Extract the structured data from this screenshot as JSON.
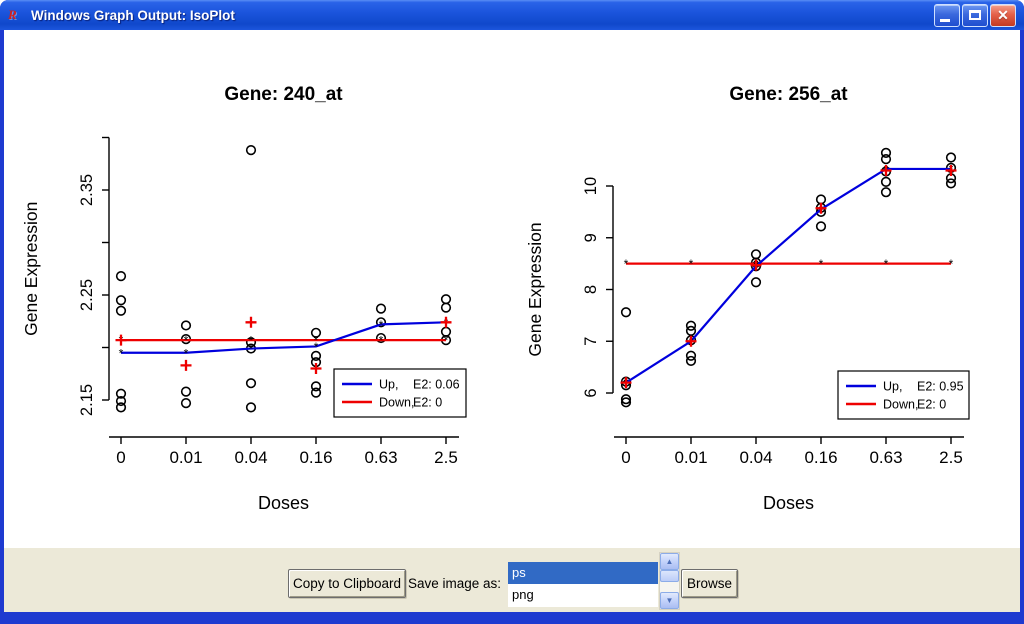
{
  "window": {
    "title": "Windows Graph Output: IsoPlot"
  },
  "icons": {
    "app": "R",
    "minimize": "minimize-bar",
    "maximize": "restore-square",
    "close": "✕",
    "scroll_up": "▲",
    "scroll_down": "▼"
  },
  "toolbar": {
    "copy_button": "Copy to Clipboard",
    "save_label": "Save image as:",
    "format_options": [
      "ps",
      "png"
    ],
    "selected_format": "ps",
    "browse_button": "Browse"
  },
  "colors": {
    "up_line": "#0000dd",
    "down_line": "#ee0000",
    "marker_asterisk": "#444444",
    "selection_blue": "#316ac5",
    "panel_beige": "#ece9d8"
  },
  "chart_data": [
    {
      "type": "scatter",
      "title": "Gene: 240_at",
      "xlabel": "Doses",
      "ylabel": "Gene Expression",
      "categories": [
        "0",
        "0.01",
        "0.04",
        "0.16",
        "0.63",
        "2.5"
      ],
      "ylim": [
        2.15,
        2.4
      ],
      "yticks": [
        2.15,
        2.2,
        2.25,
        2.3,
        2.35,
        2.4
      ],
      "ytick_labels": [
        "2.15",
        "",
        "2.25",
        "",
        "2.35",
        ""
      ],
      "points": [
        [
          2.268,
          2.245,
          2.235,
          2.156,
          2.149,
          2.143
        ],
        [
          2.221,
          2.208,
          2.158,
          2.147
        ],
        [
          2.388,
          2.205,
          2.199,
          2.166,
          2.143
        ],
        [
          2.214,
          2.192,
          2.186,
          2.163,
          2.157
        ],
        [
          2.237,
          2.224,
          2.209
        ],
        [
          2.246,
          2.238,
          2.215,
          2.207
        ]
      ],
      "series": [
        {
          "name": "Up",
          "color": "#0000dd",
          "values": [
            2.195,
            2.195,
            2.199,
            2.201,
            2.222,
            2.224
          ]
        },
        {
          "name": "Down",
          "color": "#ee0000",
          "values": [
            2.207,
            2.207,
            2.207,
            2.207,
            2.207,
            2.207
          ]
        }
      ],
      "down_plus_markers": [
        [
          0,
          2.207
        ],
        [
          1,
          2.183
        ],
        [
          2,
          2.224
        ],
        [
          3,
          2.18
        ],
        [
          5,
          2.224
        ]
      ],
      "legend": [
        {
          "label": "Up,",
          "e2": "E2: 0.06",
          "color": "#0000dd"
        },
        {
          "label": "Down,",
          "e2": "E2: 0",
          "color": "#ee0000"
        }
      ]
    },
    {
      "type": "scatter",
      "title": "Gene: 256_at",
      "xlabel": "Doses",
      "ylabel": "Gene Expression",
      "categories": [
        "0",
        "0.01",
        "0.04",
        "0.16",
        "0.63",
        "2.5"
      ],
      "ylim": [
        6,
        10
      ],
      "yticks": [
        6,
        7,
        8,
        9,
        10
      ],
      "ytick_labels": [
        "6",
        "7",
        "8",
        "9",
        "10"
      ],
      "points": [
        [
          7.56,
          6.22,
          6.15,
          5.88,
          5.82
        ],
        [
          7.3,
          7.2,
          7.02,
          6.72,
          6.62
        ],
        [
          8.68,
          8.52,
          8.45,
          8.14
        ],
        [
          9.74,
          9.58,
          9.5,
          9.22
        ],
        [
          10.64,
          10.52,
          10.28,
          10.08,
          9.88
        ],
        [
          10.55,
          10.35,
          10.15,
          10.05
        ]
      ],
      "series": [
        {
          "name": "Up",
          "color": "#0000dd",
          "values": [
            6.2,
            7.0,
            8.45,
            9.55,
            10.33,
            10.33
          ]
        },
        {
          "name": "Down",
          "color": "#ee0000",
          "values": [
            8.5,
            8.5,
            8.5,
            8.5,
            8.5,
            8.5
          ]
        }
      ],
      "down_plus_markers": [
        [
          0,
          6.2
        ],
        [
          1,
          7.0
        ],
        [
          2,
          8.47
        ],
        [
          3,
          9.57
        ],
        [
          4,
          10.3
        ],
        [
          5,
          10.3
        ]
      ],
      "legend": [
        {
          "label": "Up,",
          "e2": "E2: 0.95",
          "color": "#0000dd"
        },
        {
          "label": "Down,",
          "e2": "E2: 0",
          "color": "#ee0000"
        }
      ]
    }
  ]
}
